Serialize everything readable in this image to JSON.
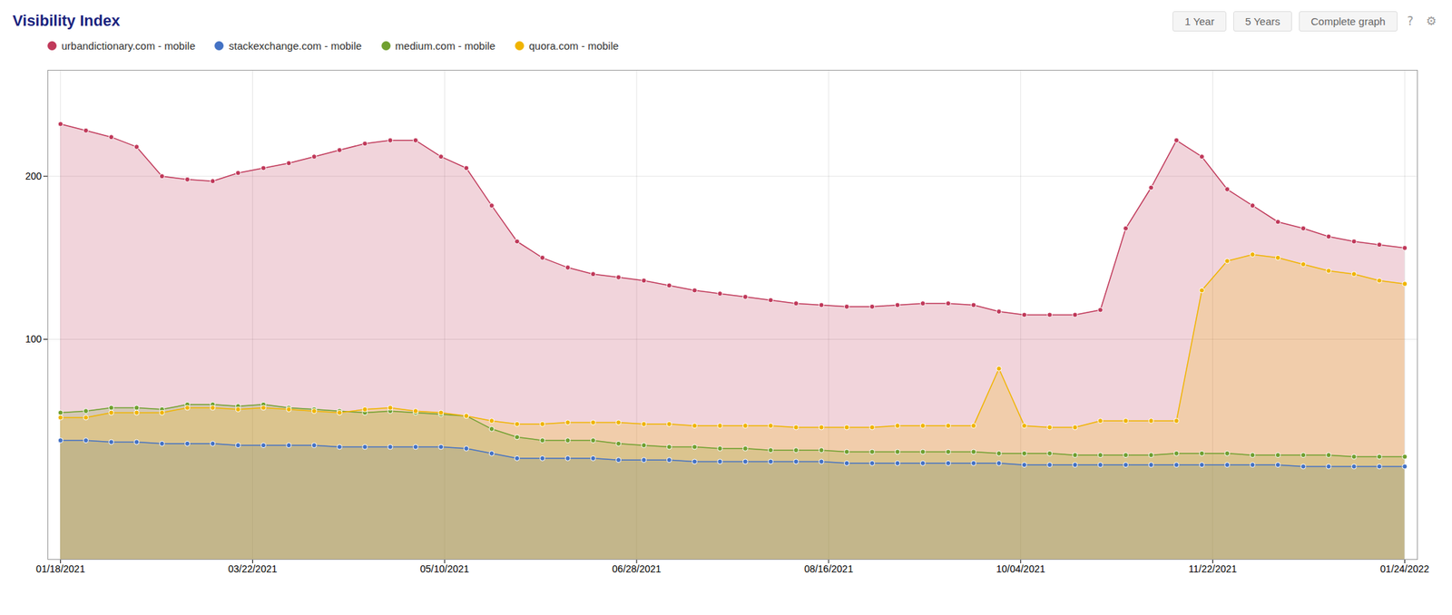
{
  "chart_data": {
    "type": "area",
    "title": "Visibility Index",
    "annotations": [
      "1 Year",
      "5 Years",
      "Complete graph",
      "?",
      "⚙"
    ],
    "x": [
      0,
      1,
      2,
      3,
      4,
      5,
      6,
      7,
      8,
      9,
      10,
      11,
      12,
      13,
      14,
      15,
      16,
      17,
      18,
      19,
      20,
      21,
      22,
      23,
      24,
      25,
      26,
      27,
      28,
      29,
      30,
      31,
      32,
      33,
      34,
      35,
      36,
      37,
      38,
      39,
      40,
      41,
      42,
      43,
      44,
      45,
      46,
      47,
      48,
      49,
      50,
      51,
      52,
      53
    ],
    "xlim": [
      -0.5,
      53.5
    ],
    "xticks": [
      {
        "value": 0,
        "label": "01/18/2021"
      },
      {
        "value": 7.571428571428571,
        "label": "03/22/2021"
      },
      {
        "value": 15.142857142857142,
        "label": "05/10/2021"
      },
      {
        "value": 22.714285714285715,
        "label": "06/28/2021"
      },
      {
        "value": 30.285714285714285,
        "label": "08/16/2021"
      },
      {
        "value": 37.857142857142854,
        "label": "10/04/2021"
      },
      {
        "value": 45.42857142857143,
        "label": "11/22/2021"
      },
      {
        "value": 53,
        "label": "01/24/2022"
      }
    ],
    "ylim": [
      -35,
      265
    ],
    "yticks": [
      100,
      200
    ],
    "grid": true,
    "legend": "top",
    "marker": "circle",
    "series": [
      {
        "name": "urbandictionary.com - mobile",
        "color": "#c0395a",
        "values": [
          232,
          228,
          224,
          218,
          200,
          198,
          197,
          202,
          205,
          208,
          212,
          216,
          220,
          222,
          222,
          212,
          205,
          182,
          160,
          150,
          144,
          140,
          138,
          136,
          133,
          130,
          128,
          126,
          124,
          122,
          121,
          120,
          120,
          121,
          122,
          122,
          121,
          117,
          115,
          115,
          115,
          118,
          168,
          193,
          222,
          212,
          192,
          182,
          172,
          168,
          163,
          160,
          158,
          156
        ]
      },
      {
        "name": "stackexchange.com - mobile",
        "color": "#4472c4",
        "values": [
          38,
          38,
          37,
          37,
          36,
          36,
          36,
          35,
          35,
          35,
          35,
          34,
          34,
          34,
          34,
          34,
          33,
          30,
          27,
          27,
          27,
          27,
          26,
          26,
          26,
          25,
          25,
          25,
          25,
          25,
          25,
          24,
          24,
          24,
          24,
          24,
          24,
          24,
          23,
          23,
          23,
          23,
          23,
          23,
          23,
          23,
          23,
          23,
          23,
          22,
          22,
          22,
          22,
          22
        ]
      },
      {
        "name": "medium.com - mobile",
        "color": "#70a030",
        "values": [
          55,
          56,
          58,
          58,
          57,
          60,
          60,
          59,
          60,
          58,
          57,
          56,
          55,
          56,
          55,
          54,
          53,
          45,
          40,
          38,
          38,
          38,
          36,
          35,
          34,
          34,
          33,
          33,
          32,
          32,
          32,
          31,
          31,
          31,
          31,
          31,
          31,
          30,
          30,
          30,
          29,
          29,
          29,
          29,
          30,
          30,
          30,
          29,
          29,
          29,
          29,
          28,
          28,
          28
        ]
      },
      {
        "name": "quora.com - mobile",
        "color": "#f0b400",
        "values": [
          52,
          52,
          55,
          55,
          55,
          58,
          58,
          57,
          58,
          57,
          56,
          55,
          57,
          58,
          56,
          55,
          53,
          50,
          48,
          48,
          49,
          49,
          49,
          48,
          48,
          47,
          47,
          47,
          47,
          46,
          46,
          46,
          46,
          47,
          47,
          47,
          47,
          82,
          47,
          46,
          46,
          50,
          50,
          50,
          50,
          130,
          148,
          152,
          150,
          146,
          142,
          140,
          136,
          134
        ]
      }
    ]
  }
}
